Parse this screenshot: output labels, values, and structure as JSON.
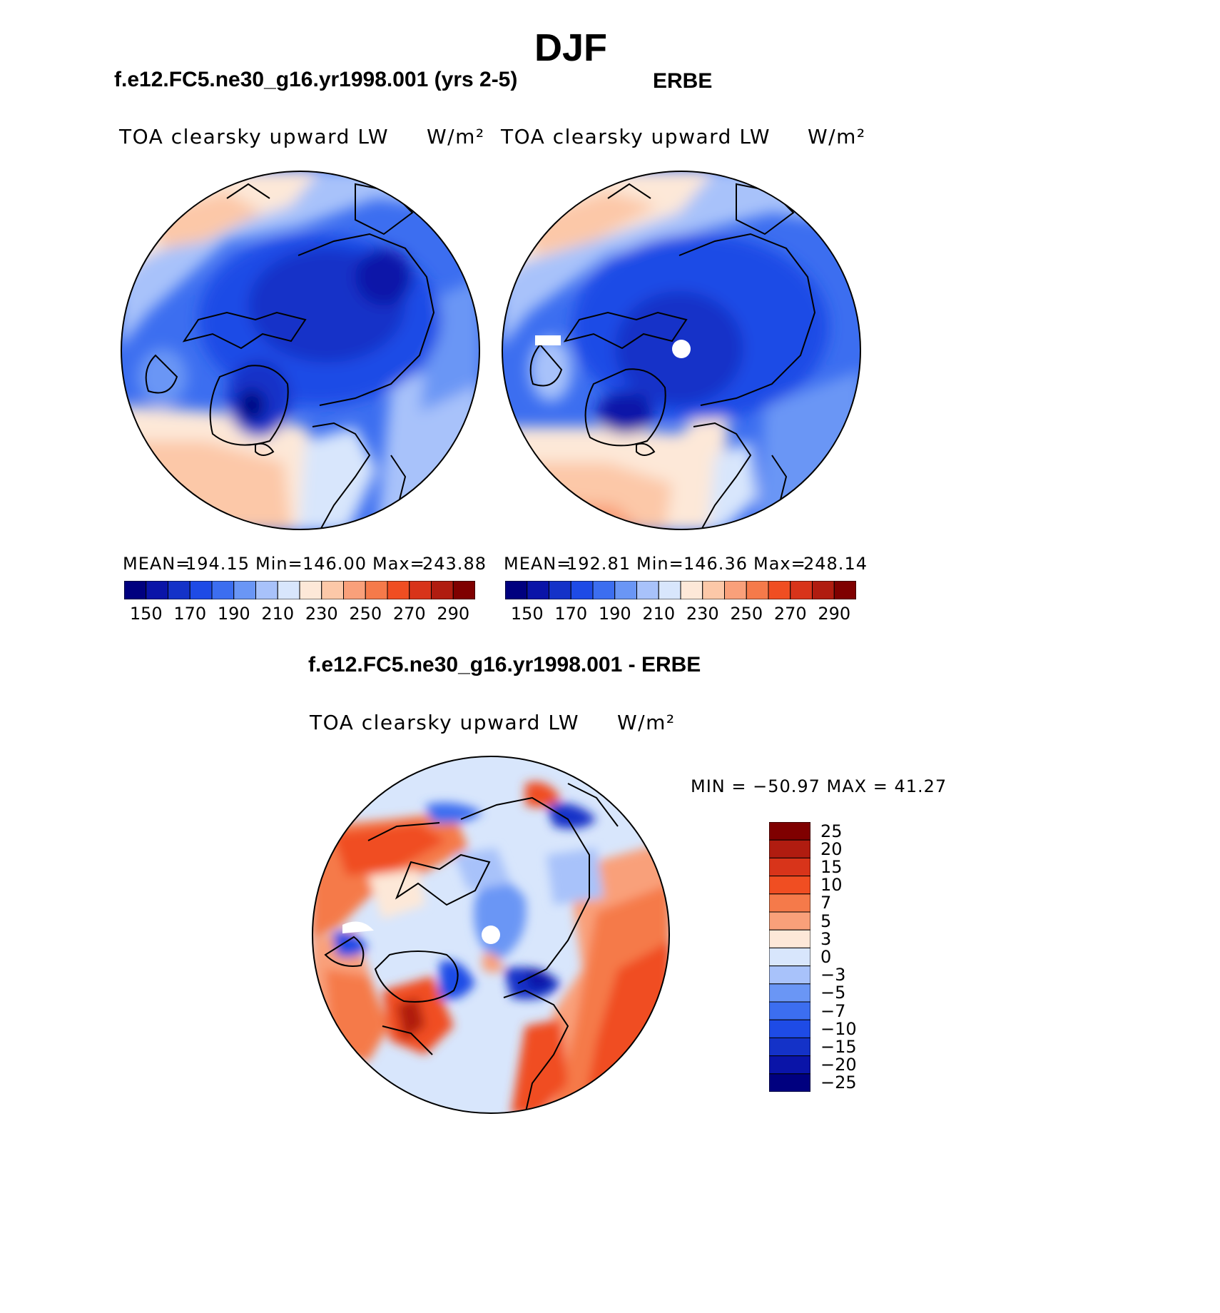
{
  "title": "DJF",
  "panels": [
    {
      "id": "model",
      "title": "f.e12.FC5.ne30_g16.yr1998.001 (yrs 2-5)",
      "left_label": "TOA clearsky upward LW",
      "units": "W/m²",
      "stats": {
        "mean_label": "MEAN=",
        "mean": "194.15",
        "min_label": "Min=",
        "min": "146.00",
        "max_label": "Max=",
        "max": "243.88"
      }
    },
    {
      "id": "obs",
      "title": "ERBE",
      "left_label": "TOA clearsky upward LW",
      "units": "W/m²",
      "stats": {
        "mean_label": "MEAN=",
        "mean": "192.81",
        "min_label": "Min=",
        "min": "146.36",
        "max_label": "Max=",
        "max": "248.14"
      }
    }
  ],
  "abs_colorbar": {
    "colors": [
      "#00007f",
      "#0a14a8",
      "#1432c8",
      "#1e4be6",
      "#3c6ef0",
      "#6a96f5",
      "#a8c2fa",
      "#d8e6fc",
      "#fde8d8",
      "#fcc8a8",
      "#f9a07a",
      "#f57a4a",
      "#f04e22",
      "#d8341a",
      "#b01c10",
      "#7f0000"
    ],
    "tick_labels": [
      "150",
      "170",
      "190",
      "210",
      "230",
      "250",
      "270",
      "290"
    ]
  },
  "diff_panel": {
    "title": "f.e12.FC5.ne30_g16.yr1998.001 - ERBE",
    "left_label": "TOA clearsky upward LW",
    "units": "W/m²",
    "minmax": "MIN = −50.97 MAX =  41.27",
    "colorbar": {
      "colors": [
        "#7f0000",
        "#b01c10",
        "#d8341a",
        "#f04e22",
        "#f57a4a",
        "#f9a07a",
        "#fde8d8",
        "#d8e6fc",
        "#a8c2fa",
        "#6a96f5",
        "#3c6ef0",
        "#1e4be6",
        "#1432c8",
        "#0a14a8",
        "#00007f"
      ],
      "tick_labels": [
        "25",
        "20",
        "15",
        "10",
        "7",
        "5",
        "3",
        "0",
        "−3",
        "−5",
        "−7",
        "−10",
        "−15",
        "−20",
        "−25"
      ]
    }
  }
}
